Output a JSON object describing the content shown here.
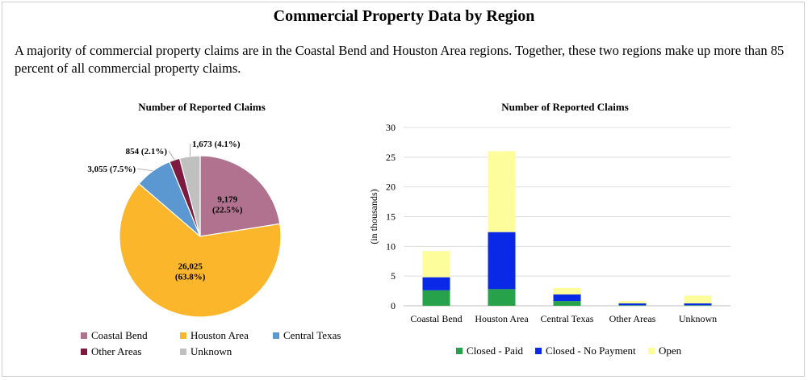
{
  "page": {
    "title": "Commercial Property Data by Region",
    "summary": "A majority of commercial property claims are in the Coastal Bend and Houston Area regions. Together, these two regions make up more than 85 percent of all commercial property claims."
  },
  "chart_data": [
    {
      "type": "pie",
      "title": "Number of Reported Claims",
      "legend_position": "bottom",
      "slices": [
        {
          "label": "Coastal Bend",
          "value": 9179,
          "value_label": "9,179",
          "pct_label": "(22.5%)",
          "color": "#b0728f"
        },
        {
          "label": "Houston Area",
          "value": 26025,
          "value_label": "26,025",
          "pct_label": "(63.8%)",
          "color": "#fcb62b"
        },
        {
          "label": "Central Texas",
          "value": 3055,
          "value_label": "3,055 (7.5%)",
          "pct_label": "",
          "color": "#5b97d0"
        },
        {
          "label": "Other Areas",
          "value": 854,
          "value_label": "854 (2.1%)",
          "pct_label": "",
          "color": "#7c1a3f"
        },
        {
          "label": "Unknown",
          "value": 1673,
          "value_label": "1,673 (4.1%)",
          "pct_label": "",
          "color": "#c0c0c0"
        }
      ]
    },
    {
      "type": "bar",
      "stacked": true,
      "title": "Number of Reported Claims",
      "ylabel": "(in thousands)",
      "ylim": [
        0,
        30
      ],
      "yticks": [
        "0",
        "5",
        "10",
        "15",
        "20",
        "25",
        "30"
      ],
      "grid": true,
      "legend_position": "bottom",
      "categories": [
        "Coastal Bend",
        "Houston Area",
        "Central Texas",
        "Other Areas",
        "Unknown"
      ],
      "series": [
        {
          "name": "Closed - Paid",
          "color": "#27a24b",
          "values": [
            2.6,
            2.8,
            0.8,
            0.1,
            0.1
          ]
        },
        {
          "name": "Closed - No Payment",
          "color": "#0a29e6",
          "values": [
            2.2,
            9.6,
            1.1,
            0.3,
            0.3
          ]
        },
        {
          "name": "Open",
          "color": "#fdfd9c",
          "values": [
            4.4,
            13.6,
            1.1,
            0.4,
            1.3
          ]
        }
      ]
    }
  ]
}
